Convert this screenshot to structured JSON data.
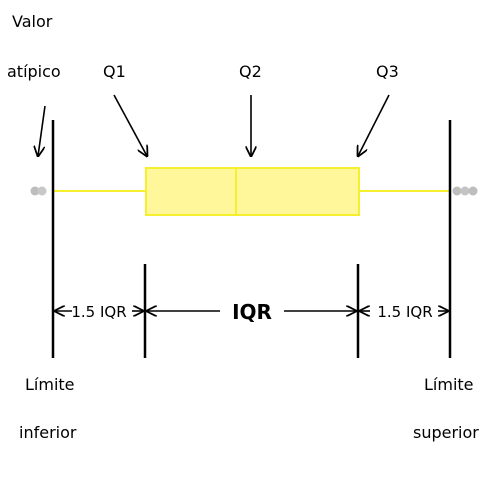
{
  "labels": {
    "outlier_line1": "Valor",
    "outlier_line2": "atípico",
    "q1": "Q1",
    "q2": "Q2",
    "q3": "Q3",
    "left_whisker_span": "1.5 IQR",
    "iqr": "IQR",
    "right_whisker_span": "1.5 IQR",
    "lower_limit_line1": "Límite",
    "lower_limit_line2": "inferior",
    "upper_limit_line1": "Límite",
    "upper_limit_line2": "superior"
  },
  "colors": {
    "box_fill": "#fff799",
    "box_stroke": "#f5ef2f",
    "whisker": "#f5ef2f",
    "outlier": "#bdbdbd",
    "ink": "#000000"
  }
}
